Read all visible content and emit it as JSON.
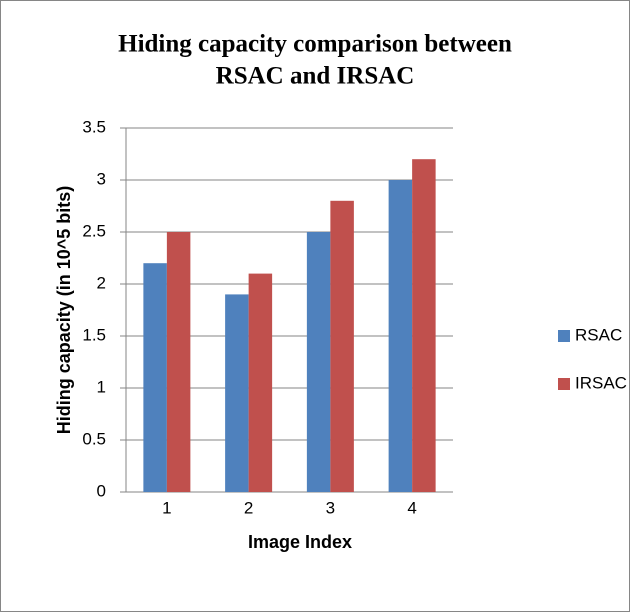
{
  "chart_data": {
    "type": "bar",
    "title": [
      "Hiding capacity comparison between",
      "RSAC and IRSAC"
    ],
    "x_label": "Image Index",
    "y_label": "Hiding capacity (in 10^5 bits)",
    "categories": [
      "1",
      "2",
      "3",
      "4"
    ],
    "series": [
      {
        "name": "RSAC",
        "color": "#4f81bd",
        "values": [
          2.2,
          1.9,
          2.5,
          3.0
        ]
      },
      {
        "name": "IRSAC",
        "color": "#c0504d",
        "values": [
          2.5,
          2.1,
          2.8,
          3.2
        ]
      }
    ],
    "ylim": [
      0,
      3.5
    ],
    "yticks": [
      0,
      0.5,
      1,
      1.5,
      2,
      2.5,
      3,
      3.5
    ],
    "grid": true,
    "legend": "right"
  }
}
